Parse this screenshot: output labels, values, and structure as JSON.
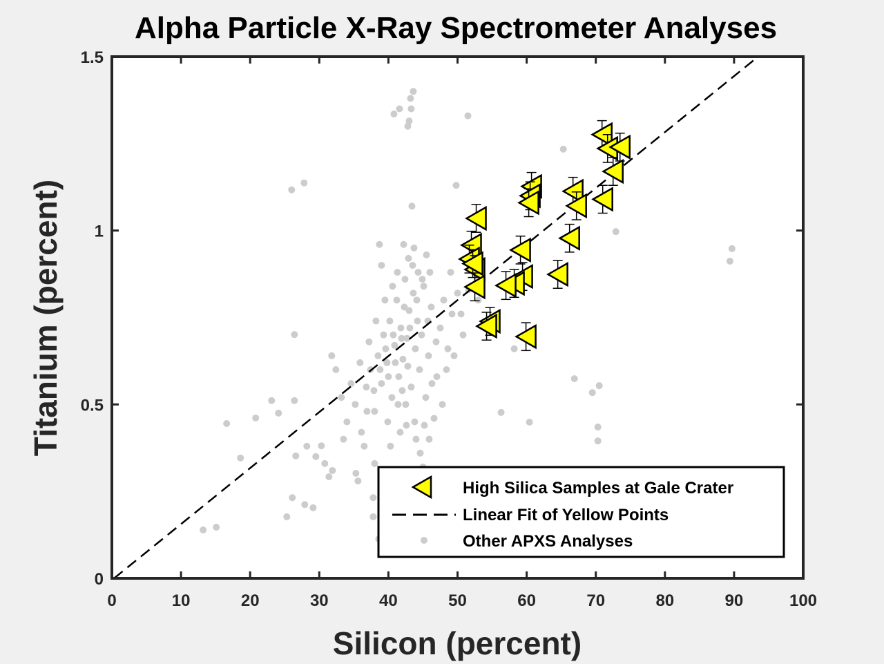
{
  "chart_data": {
    "type": "scatter",
    "title": "Alpha Particle X-Ray Spectrometer Analyses",
    "xlabel": "Silicon (percent)",
    "ylabel": "Titanium (percent)",
    "xlim": [
      0,
      100
    ],
    "ylim": [
      0,
      1.5
    ],
    "xticks": [
      "0",
      "10",
      "20",
      "30",
      "40",
      "50",
      "60",
      "70",
      "80",
      "90",
      "100"
    ],
    "yticks": [
      "0",
      "0.5",
      "1",
      "1.5"
    ],
    "grid": false,
    "legend_position": "bottom-right",
    "legend": [
      "High Silica Samples at Gale Crater",
      "Linear Fit of Yellow Points",
      "Other APXS Analyses"
    ],
    "colors": {
      "yellow": "#ffff00",
      "gray": "#cccccc",
      "fit": "#000000",
      "background": "#f0f0f0"
    },
    "series": [
      {
        "name": "High Silica Samples at Gale Crater",
        "marker": "left-triangle",
        "error": 0.04,
        "points": [
          [
            70.9,
            1.276
          ],
          [
            71.7,
            1.236
          ],
          [
            73.5,
            1.24
          ],
          [
            72.5,
            1.17
          ],
          [
            71.0,
            1.09
          ],
          [
            60.7,
            1.127
          ],
          [
            60.5,
            1.1
          ],
          [
            60.3,
            1.08
          ],
          [
            66.7,
            1.113
          ],
          [
            67.2,
            1.071
          ],
          [
            66.2,
            0.978
          ],
          [
            52.7,
            1.035
          ],
          [
            52.0,
            0.958
          ],
          [
            51.7,
            0.918
          ],
          [
            52.5,
            0.888
          ],
          [
            52.5,
            0.838
          ],
          [
            59.1,
            0.944
          ],
          [
            59.4,
            0.868
          ],
          [
            58.2,
            0.848
          ],
          [
            57.0,
            0.842
          ],
          [
            64.5,
            0.874
          ],
          [
            54.7,
            0.739
          ],
          [
            54.2,
            0.725
          ],
          [
            59.9,
            0.695
          ],
          [
            52.2,
            0.905
          ]
        ]
      },
      {
        "name": "Linear Fit of Yellow Points",
        "type": "line",
        "slope": 0.0161,
        "intercept": -0.005
      },
      {
        "name": "Other APXS Analyses",
        "marker": "dot",
        "points": [
          [
            40.8,
            1.335
          ],
          [
            41.6,
            1.35
          ],
          [
            43.3,
            1.35
          ],
          [
            43.6,
            1.4
          ],
          [
            43.0,
            1.315
          ],
          [
            42.8,
            1.3
          ],
          [
            43.2,
            1.38
          ],
          [
            51.5,
            1.33
          ],
          [
            49.8,
            1.13
          ],
          [
            27.8,
            1.137
          ],
          [
            26.0,
            1.117
          ],
          [
            43.4,
            1.07
          ],
          [
            65.3,
            1.234
          ],
          [
            72.9,
            0.997
          ],
          [
            89.7,
            0.948
          ],
          [
            89.4,
            0.912
          ],
          [
            58.2,
            0.66
          ],
          [
            66.9,
            0.574
          ],
          [
            70.5,
            0.554
          ],
          [
            69.5,
            0.534
          ],
          [
            60.4,
            0.449
          ],
          [
            56.3,
            0.477
          ],
          [
            70.3,
            0.435
          ],
          [
            70.3,
            0.395
          ],
          [
            26.4,
            0.701
          ],
          [
            16.6,
            0.445
          ],
          [
            20.8,
            0.461
          ],
          [
            23.1,
            0.511
          ],
          [
            24.1,
            0.475
          ],
          [
            26.4,
            0.511
          ],
          [
            18.6,
            0.346
          ],
          [
            13.2,
            0.139
          ],
          [
            15.1,
            0.147
          ],
          [
            25.3,
            0.177
          ],
          [
            26.1,
            0.232
          ],
          [
            29.1,
            0.203
          ],
          [
            27.9,
            0.212
          ],
          [
            26.6,
            0.352
          ],
          [
            30.3,
            0.381
          ],
          [
            31.4,
            0.292
          ],
          [
            35.3,
            0.302
          ],
          [
            37.8,
            0.177
          ],
          [
            37.8,
            0.232
          ],
          [
            38.6,
            0.113
          ],
          [
            28.2,
            0.38
          ],
          [
            29.5,
            0.35
          ],
          [
            30.8,
            0.33
          ],
          [
            31.9,
            0.31
          ],
          [
            33.5,
            0.4
          ],
          [
            34.0,
            0.45
          ],
          [
            35.2,
            0.5
          ],
          [
            36.1,
            0.42
          ],
          [
            36.8,
            0.55
          ],
          [
            37.4,
            0.6
          ],
          [
            38.0,
            0.48
          ],
          [
            38.5,
            0.64
          ],
          [
            39.0,
            0.56
          ],
          [
            39.3,
            0.7
          ],
          [
            39.8,
            0.62
          ],
          [
            40.2,
            0.74
          ],
          [
            40.5,
            0.52
          ],
          [
            40.9,
            0.67
          ],
          [
            41.2,
            0.8
          ],
          [
            41.5,
            0.58
          ],
          [
            41.8,
            0.72
          ],
          [
            42.1,
            0.63
          ],
          [
            42.4,
            0.86
          ],
          [
            42.7,
            0.69
          ],
          [
            43.0,
            0.77
          ],
          [
            43.3,
            0.55
          ],
          [
            43.6,
            0.82
          ],
          [
            43.9,
            0.66
          ],
          [
            44.2,
            0.74
          ],
          [
            44.5,
            0.6
          ],
          [
            44.8,
            0.7
          ],
          [
            45.1,
            0.84
          ],
          [
            45.4,
            0.52
          ],
          [
            45.8,
            0.64
          ],
          [
            46.2,
            0.78
          ],
          [
            46.6,
            0.46
          ],
          [
            47.0,
            0.58
          ],
          [
            47.5,
            0.72
          ],
          [
            48.0,
            0.8
          ],
          [
            48.6,
            0.66
          ],
          [
            49.2,
            0.76
          ],
          [
            50.0,
            0.82
          ],
          [
            50.8,
            0.7
          ],
          [
            37.2,
            0.68
          ],
          [
            38.2,
            0.74
          ],
          [
            39.5,
            0.8
          ],
          [
            40.0,
            0.58
          ],
          [
            41.0,
            0.62
          ],
          [
            42.0,
            0.54
          ],
          [
            42.5,
            0.5
          ],
          [
            43.8,
            0.45
          ],
          [
            44.0,
            0.4
          ],
          [
            44.6,
            0.36
          ],
          [
            45.0,
            0.32
          ],
          [
            43.5,
            0.9
          ],
          [
            42.9,
            0.92
          ],
          [
            44.3,
            0.88
          ],
          [
            41.3,
            0.88
          ],
          [
            40.6,
            0.84
          ],
          [
            39.0,
            0.9
          ],
          [
            38.7,
            0.96
          ],
          [
            42.2,
            0.96
          ],
          [
            43.7,
            0.95
          ],
          [
            45.5,
            0.93
          ],
          [
            46.0,
            0.88
          ],
          [
            39.9,
            0.45
          ],
          [
            41.7,
            0.42
          ],
          [
            40.3,
            0.38
          ],
          [
            39.2,
            0.3
          ],
          [
            38.0,
            0.33
          ],
          [
            36.5,
            0.38
          ],
          [
            35.6,
            0.28
          ],
          [
            42.3,
            0.78
          ],
          [
            41.9,
            0.69
          ],
          [
            42.8,
            0.61
          ],
          [
            43.1,
            0.72
          ],
          [
            44.1,
            0.8
          ],
          [
            40.7,
            0.7
          ],
          [
            39.6,
            0.66
          ],
          [
            38.8,
            0.6
          ],
          [
            37.9,
            0.54
          ],
          [
            36.9,
            0.48
          ],
          [
            35.9,
            0.62
          ],
          [
            34.6,
            0.56
          ],
          [
            33.2,
            0.52
          ],
          [
            32.4,
            0.6
          ],
          [
            31.8,
            0.64
          ],
          [
            47.8,
            0.5
          ],
          [
            48.4,
            0.6
          ],
          [
            49.5,
            0.64
          ],
          [
            46.9,
            0.68
          ],
          [
            45.7,
            0.74
          ],
          [
            44.9,
            0.86
          ],
          [
            49.0,
            0.88
          ],
          [
            50.5,
            0.76
          ],
          [
            51.6,
            0.83
          ],
          [
            53.0,
            0.8
          ],
          [
            46.3,
            0.56
          ],
          [
            45.2,
            0.44
          ],
          [
            44.7,
            0.28
          ],
          [
            45.9,
            0.4
          ],
          [
            42.6,
            0.44
          ],
          [
            41.4,
            0.5
          ]
        ]
      }
    ]
  }
}
